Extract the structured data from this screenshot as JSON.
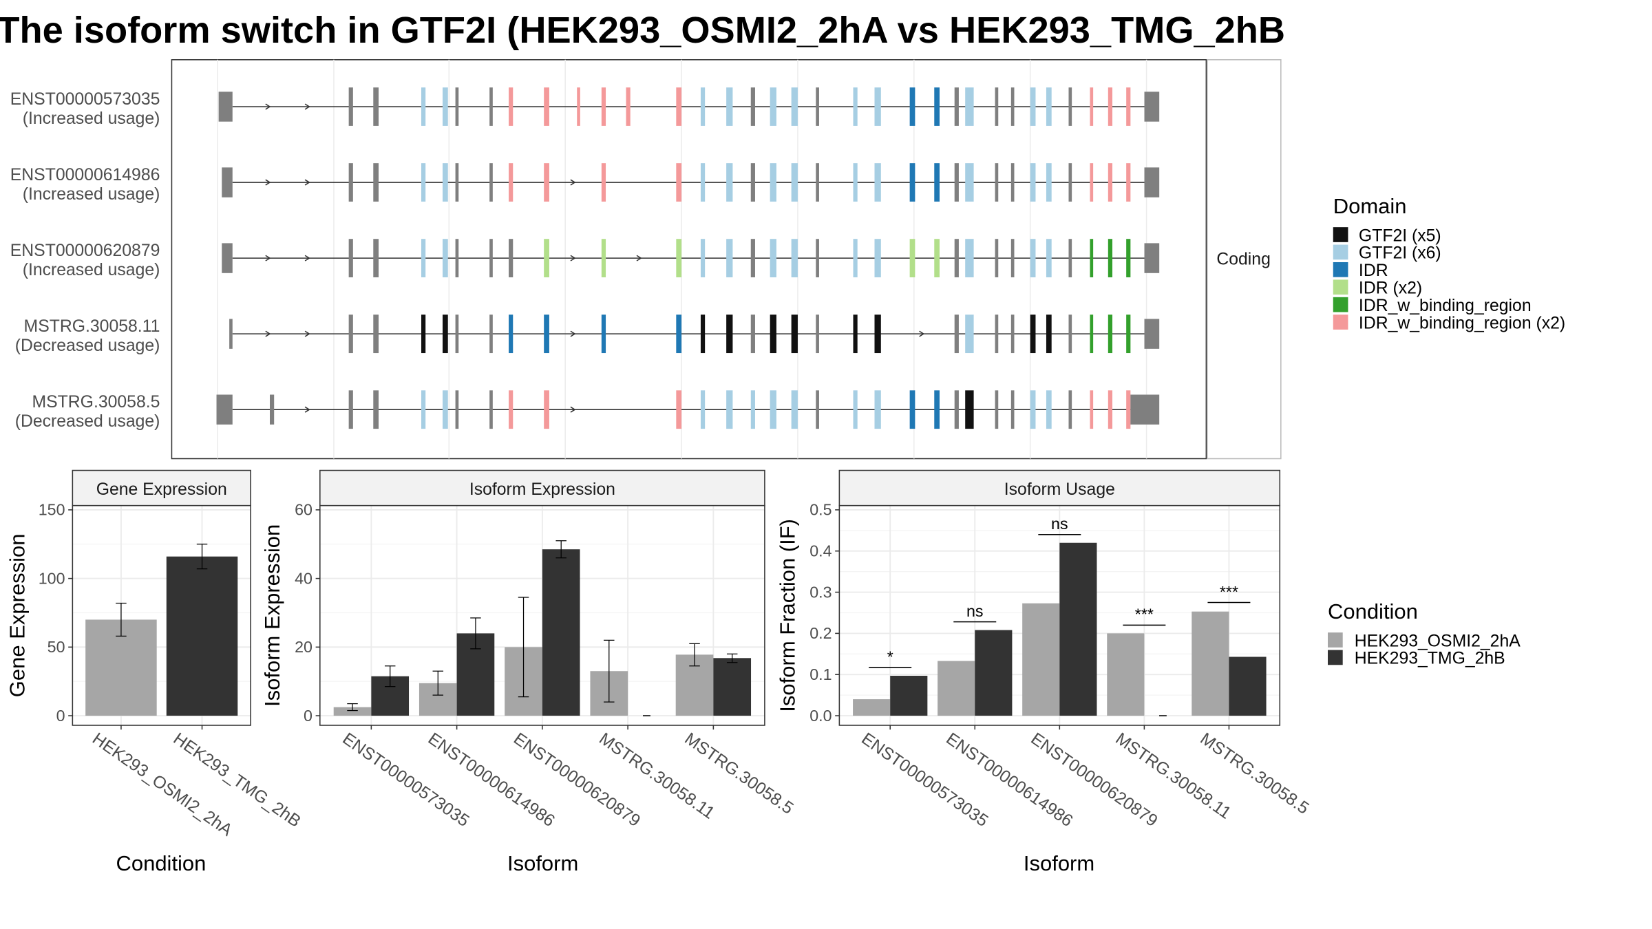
{
  "title": "The isoform switch in GTF2I (HEK293_OSMI2_2hA vs HEK293_TMG_2hB",
  "colors": {
    "GTF2I_x5": "#111111",
    "GTF2I_x6": "#a6cee3",
    "IDR": "#1f78b4",
    "IDR_x2": "#b2df8a",
    "IDR_w_binding_region": "#33a02c",
    "IDR_w_binding_region_x2": "#f4999a",
    "none": "#7f7f7f",
    "cond1": "#a6a6a6",
    "cond2": "#333333"
  },
  "structure": {
    "strip_label": "Coding",
    "isoforms": [
      {
        "id": "ENST00000573035",
        "note": "(Increased usage)"
      },
      {
        "id": "ENST00000614986",
        "note": "(Increased usage)"
      },
      {
        "id": "ENST00000620879",
        "note": "(Increased usage)"
      },
      {
        "id": "MSTRG.30058.11",
        "note": "(Decreased usage)"
      },
      {
        "id": "MSTRG.30058.5",
        "note": "(Decreased usage)"
      }
    ],
    "legend_title": "Domain",
    "legend": [
      {
        "label": "GTF2I (x5)",
        "color_key": "GTF2I_x5"
      },
      {
        "label": "GTF2I (x6)",
        "color_key": "GTF2I_x6"
      },
      {
        "label": "IDR",
        "color_key": "IDR"
      },
      {
        "label": "IDR (x2)",
        "color_key": "IDR_x2"
      },
      {
        "label": "IDR_w_binding_region",
        "color_key": "IDR_w_binding_region"
      },
      {
        "label": "IDR_w_binding_region (x2)",
        "color_key": "IDR_w_binding_region_x2"
      }
    ]
  },
  "condition_legend": {
    "title": "Condition",
    "items": [
      {
        "label": "HEK293_OSMI2_2hA",
        "color_key": "cond1"
      },
      {
        "label": "HEK293_TMG_2hB",
        "color_key": "cond2"
      }
    ]
  },
  "chart_data": [
    {
      "type": "bar",
      "title": "Gene Expression",
      "xlabel": "Condition",
      "ylabel": "Gene Expression",
      "ylim": [
        0,
        150
      ],
      "yticks": [
        0,
        50,
        100,
        150
      ],
      "categories": [
        "HEK293_OSMI2_2hA",
        "HEK293_TMG_2hB"
      ],
      "series": [
        {
          "values": [
            70,
            116
          ],
          "err_low": [
            58,
            107
          ],
          "err_high": [
            82,
            125
          ]
        }
      ],
      "bar_color_keys": [
        "cond1",
        "cond2"
      ]
    },
    {
      "type": "bar",
      "title": "Isoform Expression",
      "xlabel": "Isoform",
      "ylabel": "Isoform Expression",
      "ylim": [
        0,
        60
      ],
      "yticks": [
        0,
        20,
        40,
        60
      ],
      "categories": [
        "ENST00000573035",
        "ENST00000614986",
        "ENST00000620879",
        "MSTRG.30058.11",
        "MSTRG.30058.5"
      ],
      "series": [
        {
          "name": "HEK293_OSMI2_2hA",
          "color_key": "cond1",
          "values": [
            2.5,
            9.5,
            20,
            13,
            17.8
          ],
          "err_low": [
            1.5,
            6,
            5.5,
            4,
            14.5
          ],
          "err_high": [
            3.5,
            13,
            34.5,
            22,
            21
          ]
        },
        {
          "name": "HEK293_TMG_2hB",
          "color_key": "cond2",
          "values": [
            11.5,
            24,
            48.5,
            0,
            16.8
          ],
          "err_low": [
            8.5,
            19.5,
            46,
            0,
            15.5
          ],
          "err_high": [
            14.5,
            28.5,
            51,
            0,
            18
          ]
        }
      ]
    },
    {
      "type": "bar",
      "title": "Isoform Usage",
      "xlabel": "Isoform",
      "ylabel": "Isoform Fraction (IF)",
      "ylim": [
        0,
        0.5
      ],
      "yticks": [
        0.0,
        0.1,
        0.2,
        0.3,
        0.4,
        0.5
      ],
      "ytick_labels": [
        "0.0",
        "0.1",
        "0.2",
        "0.3",
        "0.4",
        "0.5"
      ],
      "categories": [
        "ENST00000573035",
        "ENST00000614986",
        "ENST00000620879",
        "MSTRG.30058.11",
        "MSTRG.30058.5"
      ],
      "series": [
        {
          "name": "HEK293_OSMI2_2hA",
          "color_key": "cond1",
          "values": [
            0.04,
            0.133,
            0.273,
            0.2,
            0.253
          ]
        },
        {
          "name": "HEK293_TMG_2hB",
          "color_key": "cond2",
          "values": [
            0.097,
            0.208,
            0.42,
            0.0,
            0.143
          ]
        }
      ],
      "significance": [
        {
          "label": "*",
          "y": 0.117
        },
        {
          "label": "ns",
          "y": 0.228
        },
        {
          "label": "ns",
          "y": 0.44
        },
        {
          "label": "***",
          "y": 0.22
        },
        {
          "label": "***",
          "y": 0.275
        }
      ]
    }
  ]
}
